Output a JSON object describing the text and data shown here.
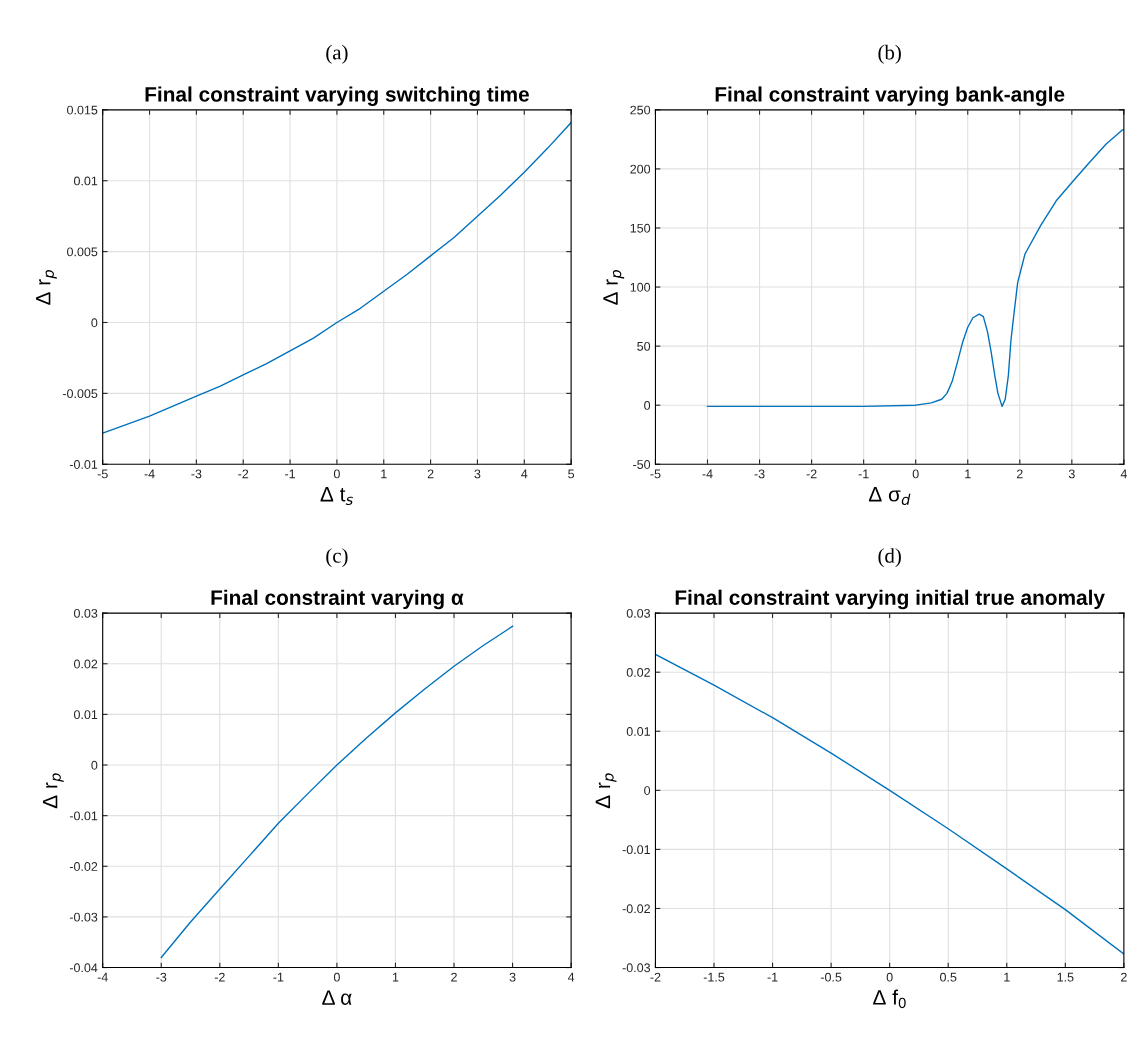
{
  "chart_data": [
    {
      "type": "line",
      "title": "Final constraint varying switching time",
      "xlabel": "Δ t$_{s}$",
      "ylabel": "Δ r$_{p}$",
      "annotations": [
        "(a)"
      ],
      "grid": true,
      "x": [
        -5,
        -4.5,
        -4,
        -3.5,
        -3,
        -2.5,
        -2,
        -1.5,
        -1,
        -0.5,
        0,
        0.5,
        1,
        1.5,
        2,
        2.5,
        3,
        3.5,
        4,
        4.5,
        5
      ],
      "series": [
        {
          "color": "#0072bd",
          "values": [
            -0.0078,
            -0.0072,
            -0.0066,
            -0.0059,
            -0.0052,
            -0.0045,
            -0.0037,
            -0.0029,
            -0.002,
            -0.0011,
            0,
            0.001,
            0.0022,
            0.0034,
            0.0047,
            0.006,
            0.0075,
            0.009,
            0.0106,
            0.0123,
            0.0141
          ]
        }
      ],
      "xlim": [
        -5,
        5
      ],
      "xticks": [
        -5,
        -4,
        -3,
        -2,
        -1,
        0,
        1,
        2,
        3,
        4,
        5
      ],
      "ylim": [
        -0.01,
        0.015
      ],
      "yticks": [
        -0.01,
        -0.005,
        0,
        0.005,
        0.01,
        0.015
      ]
    },
    {
      "type": "line",
      "title": "Final constraint varying bank-angle",
      "xlabel": "Δ σ$_{d}$",
      "ylabel": "Δ r$_{p}$",
      "annotations": [
        "(b)"
      ],
      "grid": true,
      "x": [
        -4,
        -1,
        0,
        0.3,
        0.5,
        0.6,
        0.7,
        0.8,
        0.9,
        1.0,
        1.1,
        1.22,
        1.3,
        1.38,
        1.45,
        1.52,
        1.58,
        1.66,
        1.72,
        1.78,
        1.83,
        1.89,
        1.96,
        2.1,
        2.4,
        2.7,
        3.03,
        3.35,
        3.66,
        3.97,
        4
      ],
      "series": [
        {
          "color": "#0072bd",
          "values": [
            -1,
            -1,
            0,
            2,
            5,
            10,
            20,
            36,
            53,
            66,
            74,
            77,
            75,
            62,
            45,
            25,
            10,
            -1,
            5,
            25,
            55,
            78,
            104,
            128,
            152,
            173,
            190,
            206,
            221,
            233,
            233
          ]
        }
      ],
      "xlim": [
        -5,
        4
      ],
      "xticks": [
        -5,
        -4,
        -3,
        -2,
        -1,
        0,
        1,
        2,
        3,
        4
      ],
      "ylim": [
        -50,
        250
      ],
      "yticks": [
        -50,
        0,
        50,
        100,
        150,
        200,
        250
      ]
    },
    {
      "type": "line",
      "title": "Final constraint varying α",
      "xlabel": "Δ α",
      "ylabel": "Δ r$_{p}$",
      "annotations": [
        "(c)"
      ],
      "grid": true,
      "x": [
        -3,
        -2.5,
        -2,
        -1.5,
        -1,
        -0.5,
        0,
        0.5,
        1,
        1.5,
        2,
        2.5,
        3
      ],
      "series": [
        {
          "color": "#0072bd",
          "values": [
            -0.038,
            -0.031,
            -0.0245,
            -0.018,
            -0.0115,
            -0.0057,
            0,
            0.0053,
            0.0103,
            0.015,
            0.0195,
            0.0236,
            0.0274
          ]
        }
      ],
      "xlim": [
        -4,
        4
      ],
      "xticks": [
        -4,
        -3,
        -2,
        -1,
        0,
        1,
        2,
        3,
        4
      ],
      "ylim": [
        -0.04,
        0.03
      ],
      "yticks": [
        -0.04,
        -0.03,
        -0.02,
        -0.01,
        0,
        0.01,
        0.02,
        0.03
      ]
    },
    {
      "type": "line",
      "title": "Final constraint varying initial true anomaly",
      "xlabel": "Δ f$_{0}$",
      "ylabel": "Δ r$_{p}$",
      "annotations": [
        "(d)"
      ],
      "grid": true,
      "x": [
        -2,
        -1.5,
        -1,
        -0.5,
        0,
        0.5,
        1,
        1.5,
        2
      ],
      "series": [
        {
          "color": "#0072bd",
          "values": [
            0.023,
            0.0178,
            0.0123,
            0.0063,
            0,
            -0.0065,
            -0.0133,
            -0.0202,
            -0.0277
          ]
        }
      ],
      "xlim": [
        -2,
        2
      ],
      "xticks": [
        -2,
        -1.5,
        -1,
        -0.5,
        0,
        0.5,
        1,
        1.5,
        2
      ],
      "ylim": [
        -0.03,
        0.03
      ],
      "yticks": [
        -0.03,
        -0.02,
        -0.01,
        0,
        0.01,
        0.02,
        0.03
      ]
    }
  ]
}
